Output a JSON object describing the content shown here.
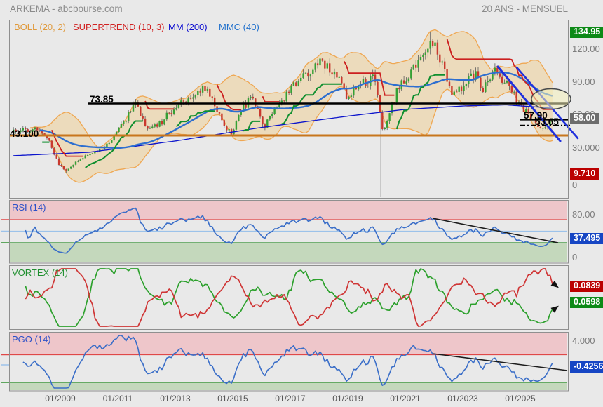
{
  "header": {
    "title_left": "ARKEMA - abcbourse.com",
    "title_right": "20 ANS - MENSUEL"
  },
  "legend": {
    "boll": "BOLL (20, 2)",
    "supertrend": "SUPERTREND (10, 3)",
    "mm": "MM (200)",
    "mmc": "MMC (40)"
  },
  "panel_titles": {
    "rsi": "RSI (14)",
    "vortex": "VORTEX (14)",
    "pgo": "PGO (14)"
  },
  "price_axis": {
    "ath_box": "134.95",
    "tick_120": "120.00",
    "tick_90": "90.00",
    "tick_60": "60.00",
    "last_box": "58.00",
    "tick_30": "30.000",
    "atl_box": "9.710",
    "tick_0": "0"
  },
  "rsi_axis": {
    "top": "80.00",
    "last_box": "37.495",
    "bottom": "0"
  },
  "vortex_axis": {
    "vi_minus_box": "0.0839",
    "vi_plus_box": "0.0598"
  },
  "pgo_axis": {
    "top": "4.000",
    "last_box": "-0.4256"
  },
  "annotations": {
    "resistance": "73.85",
    "major_support": "43.100",
    "support_1": "57.90",
    "support_2": "53.65"
  },
  "x_axis": {
    "labels": [
      "01/2009",
      "01/2011",
      "01/2013",
      "01/2015",
      "01/2017",
      "01/2019",
      "01/2021",
      "01/2023",
      "01/2025"
    ]
  },
  "colors": {
    "candle_up": "#35a035",
    "candle_down": "#c9392e",
    "wick": "#5a5a5a",
    "boll_fill": "#ecd9b8",
    "boll_line": "#efa752",
    "supertrend_up": "#0f8f2f",
    "supertrend_down": "#cc2020",
    "mm200": "#0b14cc",
    "mmc40": "#2e6fd0",
    "box_green": "#0d8a17",
    "box_red": "#bb0000",
    "box_blue": "#1646c4",
    "box_gray": "#6d6d6d",
    "zone_pink": "#eec6ca",
    "zone_green": "#c4d8bc",
    "line_red": "#e04848",
    "line_blue_light": "#9cc2ea",
    "line_green": "#2f8f2f",
    "level_orange": "#c8761d",
    "trendline_blue": "#2030dd",
    "indicator_blue": "#3a6ec8",
    "vortex_up": "#2da12d",
    "vortex_down": "#cf3535"
  },
  "chart_data": {
    "type": "candlestick+indicators",
    "timeframe": "monthly",
    "title": "ARKEMA 20 ans mensuel",
    "x_start_year": 2007.37,
    "x_end_year": 2026.2,
    "x_tick_years": [
      2009,
      2011,
      2013,
      2015,
      2017,
      2019,
      2021,
      2023,
      2025
    ],
    "price_ticks": [
      120,
      90,
      60,
      30,
      0
    ],
    "indicators": {
      "boll": [
        20,
        2
      ],
      "supertrend": [
        10,
        3
      ],
      "mm": 200,
      "mmc": 40,
      "rsi": 14,
      "vortex": 14,
      "pgo": 14
    },
    "levels": {
      "resistance": 73.85,
      "major_support": 43.1,
      "support_1": 57.9,
      "support_2": 53.65,
      "all_time_high": 134.95,
      "all_time_low": 9.71,
      "last_close": 58.0
    },
    "anchors": [
      [
        2007.37,
        46
      ],
      [
        2007.9,
        48
      ],
      [
        2008.2,
        49
      ],
      [
        2008.6,
        38
      ],
      [
        2008.95,
        17
      ],
      [
        2009.2,
        12
      ],
      [
        2009.6,
        21
      ],
      [
        2010.0,
        26
      ],
      [
        2010.5,
        31
      ],
      [
        2011.0,
        47
      ],
      [
        2011.4,
        62
      ],
      [
        2011.65,
        71
      ],
      [
        2011.9,
        55
      ],
      [
        2012.1,
        48
      ],
      [
        2012.5,
        54
      ],
      [
        2012.9,
        66
      ],
      [
        2013.3,
        73
      ],
      [
        2013.7,
        79
      ],
      [
        2014.0,
        85
      ],
      [
        2014.4,
        70
      ],
      [
        2014.75,
        48
      ],
      [
        2014.95,
        45
      ],
      [
        2015.3,
        66
      ],
      [
        2015.65,
        77
      ],
      [
        2015.9,
        65
      ],
      [
        2016.1,
        51
      ],
      [
        2016.5,
        67
      ],
      [
        2016.9,
        80
      ],
      [
        2017.3,
        92
      ],
      [
        2017.7,
        97
      ],
      [
        2018.0,
        107
      ],
      [
        2018.4,
        100
      ],
      [
        2018.7,
        92
      ],
      [
        2018.95,
        76
      ],
      [
        2019.3,
        86
      ],
      [
        2019.6,
        90
      ],
      [
        2019.95,
        94
      ],
      [
        2020.2,
        46
      ],
      [
        2020.45,
        62
      ],
      [
        2020.7,
        82
      ],
      [
        2021.0,
        94
      ],
      [
        2021.4,
        104
      ],
      [
        2021.7,
        116
      ],
      [
        2021.92,
        130
      ],
      [
        2022.1,
        118
      ],
      [
        2022.4,
        96
      ],
      [
        2022.65,
        79
      ],
      [
        2022.9,
        84
      ],
      [
        2023.2,
        92
      ],
      [
        2023.45,
        97
      ],
      [
        2023.65,
        82
      ],
      [
        2023.9,
        94
      ],
      [
        2024.1,
        99
      ],
      [
        2024.4,
        92
      ],
      [
        2024.65,
        84
      ],
      [
        2024.9,
        73
      ],
      [
        2025.1,
        68
      ],
      [
        2025.35,
        60
      ],
      [
        2025.6,
        52
      ],
      [
        2025.8,
        50
      ],
      [
        2026.0,
        55
      ],
      [
        2026.2,
        58
      ]
    ],
    "mm200_path": [
      [
        2007.4,
        25
      ],
      [
        2010,
        28
      ],
      [
        2013,
        38
      ],
      [
        2016,
        50
      ],
      [
        2019,
        60
      ],
      [
        2021,
        66
      ],
      [
        2023,
        69
      ],
      [
        2024.5,
        70
      ],
      [
        2026.2,
        67
      ]
    ],
    "rsi": {
      "range": [
        0,
        100
      ],
      "zones": [
        70,
        30
      ],
      "midline": 50,
      "shown_tick": 80,
      "last": 37.495
    },
    "vortex": {
      "last_vi_minus": 0.0839,
      "last_vi_plus": 0.0598
    },
    "pgo": {
      "shown_tick": 4.0,
      "zones": [
        3,
        -3
      ],
      "last": -0.4256
    }
  }
}
